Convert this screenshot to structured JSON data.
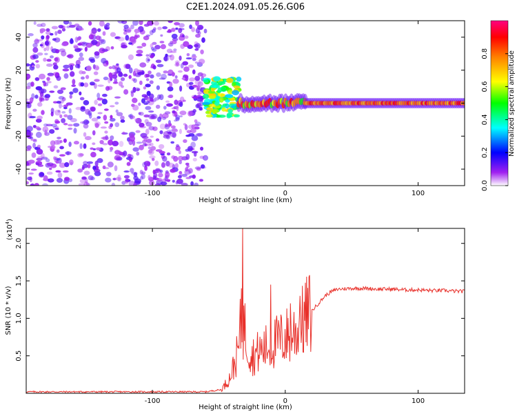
{
  "title": "C2E1.2024.091.05.26.G06",
  "chart_data": [
    {
      "type": "heatmap",
      "xlabel": "Height of straight line (km)",
      "ylabel": "Frequency (Hz)",
      "xlim": [
        -195,
        135
      ],
      "ylim": [
        -50,
        50
      ],
      "x_ticks": [
        -100,
        0,
        100
      ],
      "x_tick_labels": [
        "-100",
        "0",
        "100"
      ],
      "y_ticks": [
        -40,
        -20,
        0,
        20,
        40
      ],
      "y_tick_labels": [
        "-40",
        "-20",
        "0",
        "20",
        "40"
      ],
      "colorbar": {
        "label": "Normalized spectral amplitude",
        "range": [
          0,
          1
        ],
        "ticks": [
          0,
          0.2,
          0.4,
          0.6,
          0.8
        ],
        "tick_labels": [
          "0.0",
          "0.2",
          "0.4",
          "0.6",
          "0.8"
        ],
        "colors": [
          "#ffffff",
          "#a020f0",
          "#0000ff",
          "#00ffff",
          "#00ff00",
          "#ffff00",
          "#ff8000",
          "#ff0000",
          "#ff0080"
        ]
      },
      "regions": [
        {
          "x_range": [
            -195,
            -60
          ],
          "freq_range": [
            -50,
            50
          ],
          "amplitude": [
            0.05,
            0.15
          ],
          "pattern": "scattered noise"
        },
        {
          "x_range": [
            -60,
            -35
          ],
          "freq_range": [
            -8,
            15
          ],
          "amplitude": [
            0.3,
            0.7
          ],
          "pattern": "transition"
        },
        {
          "x_range": [
            -35,
            15
          ],
          "freq_center": 0,
          "freq_width": 3,
          "amplitude": [
            0.5,
            0.9
          ],
          "pattern": "fragmented band"
        },
        {
          "x_range": [
            15,
            135
          ],
          "freq_center": 0,
          "freq_width": 2,
          "amplitude": [
            0.7,
            0.9
          ],
          "pattern": "stable carrier line"
        }
      ]
    },
    {
      "type": "line",
      "xlabel": "Height of straight line (km)",
      "ylabel": "SNR (10 * v/v)",
      "y_multiplier": "(x10",
      "y_multiplier_exp": "4",
      "y_multiplier_close": ")",
      "xlim": [
        -195,
        135
      ],
      "ylim": [
        0,
        2.2
      ],
      "x_ticks": [
        -100,
        0,
        100
      ],
      "x_tick_labels": [
        "-100",
        "0",
        "100"
      ],
      "y_ticks": [
        0.5,
        1.0,
        1.5,
        2.0
      ],
      "y_tick_labels": [
        "0.5",
        "1.0",
        "1.5",
        "2.0"
      ],
      "series": [
        {
          "color": "#e8302a",
          "x": [
            -195,
            -60,
            -48,
            -42,
            -38,
            -35,
            -33,
            -31,
            -29,
            -25,
            -20,
            -15,
            -10,
            -5,
            0,
            5,
            10,
            15,
            20,
            25,
            30,
            35,
            40,
            50,
            60,
            70,
            80,
            90,
            100,
            110,
            120,
            130,
            135
          ],
          "y": [
            0.02,
            0.02,
            0.05,
            0.2,
            0.4,
            0.6,
            1.0,
            0.9,
            0.7,
            0.5,
            0.55,
            0.6,
            0.65,
            0.7,
            0.75,
            0.8,
            0.85,
            1.0,
            1.1,
            1.2,
            1.3,
            1.36,
            1.39,
            1.4,
            1.4,
            1.39,
            1.39,
            1.38,
            1.38,
            1.37,
            1.37,
            1.36,
            1.36
          ],
          "spikes": [
            {
              "x": -32,
              "y": 2.2
            },
            {
              "x": -33,
              "y": 1.4
            },
            {
              "x": -11,
              "y": 1.45
            },
            {
              "x": 4,
              "y": 1.2
            },
            {
              "x": 11,
              "y": 1.3
            }
          ]
        }
      ]
    }
  ]
}
